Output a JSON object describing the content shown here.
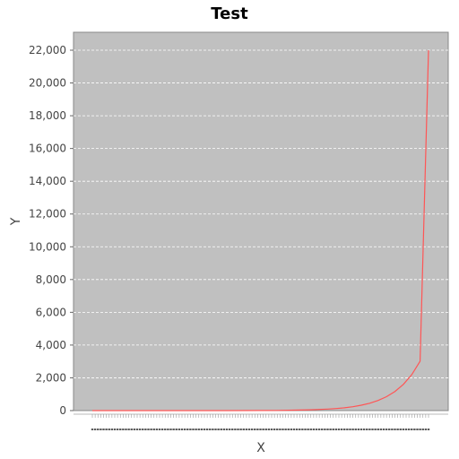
{
  "chart_data": {
    "type": "line",
    "title": "Test",
    "xlabel": "X",
    "ylabel": "Y",
    "ylim": [
      0,
      22000
    ],
    "yticks": [
      0,
      2000,
      4000,
      6000,
      8000,
      10000,
      12000,
      14000,
      16000,
      18000,
      20000,
      22000
    ],
    "ytick_labels": [
      "0",
      "2,000",
      "4,000",
      "6,000",
      "8,000",
      "10,000",
      "12,000",
      "14,000",
      "16,000",
      "18,000",
      "20,000",
      "22,000"
    ],
    "xlim": [
      0,
      10
    ],
    "grid": true,
    "legend": "none",
    "series": [
      {
        "x": [
          0,
          1,
          2,
          3,
          4,
          5,
          5.5,
          6,
          6.5,
          7,
          7.25,
          7.5,
          7.75,
          8,
          8.25,
          8.5,
          8.75,
          9,
          9.25,
          9.5,
          9.75,
          10
        ],
        "y": [
          0,
          0,
          0,
          1,
          2,
          7,
          13,
          25,
          48,
          91,
          125,
          172,
          237,
          326,
          448,
          616,
          847,
          1164,
          1598,
          2196,
          3015,
          22000
        ],
        "color": "#ff5555"
      }
    ]
  },
  "colors": {
    "plot_background": "#c0c0c0",
    "gridline": "#ffffff",
    "series_line": "#ff5555"
  }
}
